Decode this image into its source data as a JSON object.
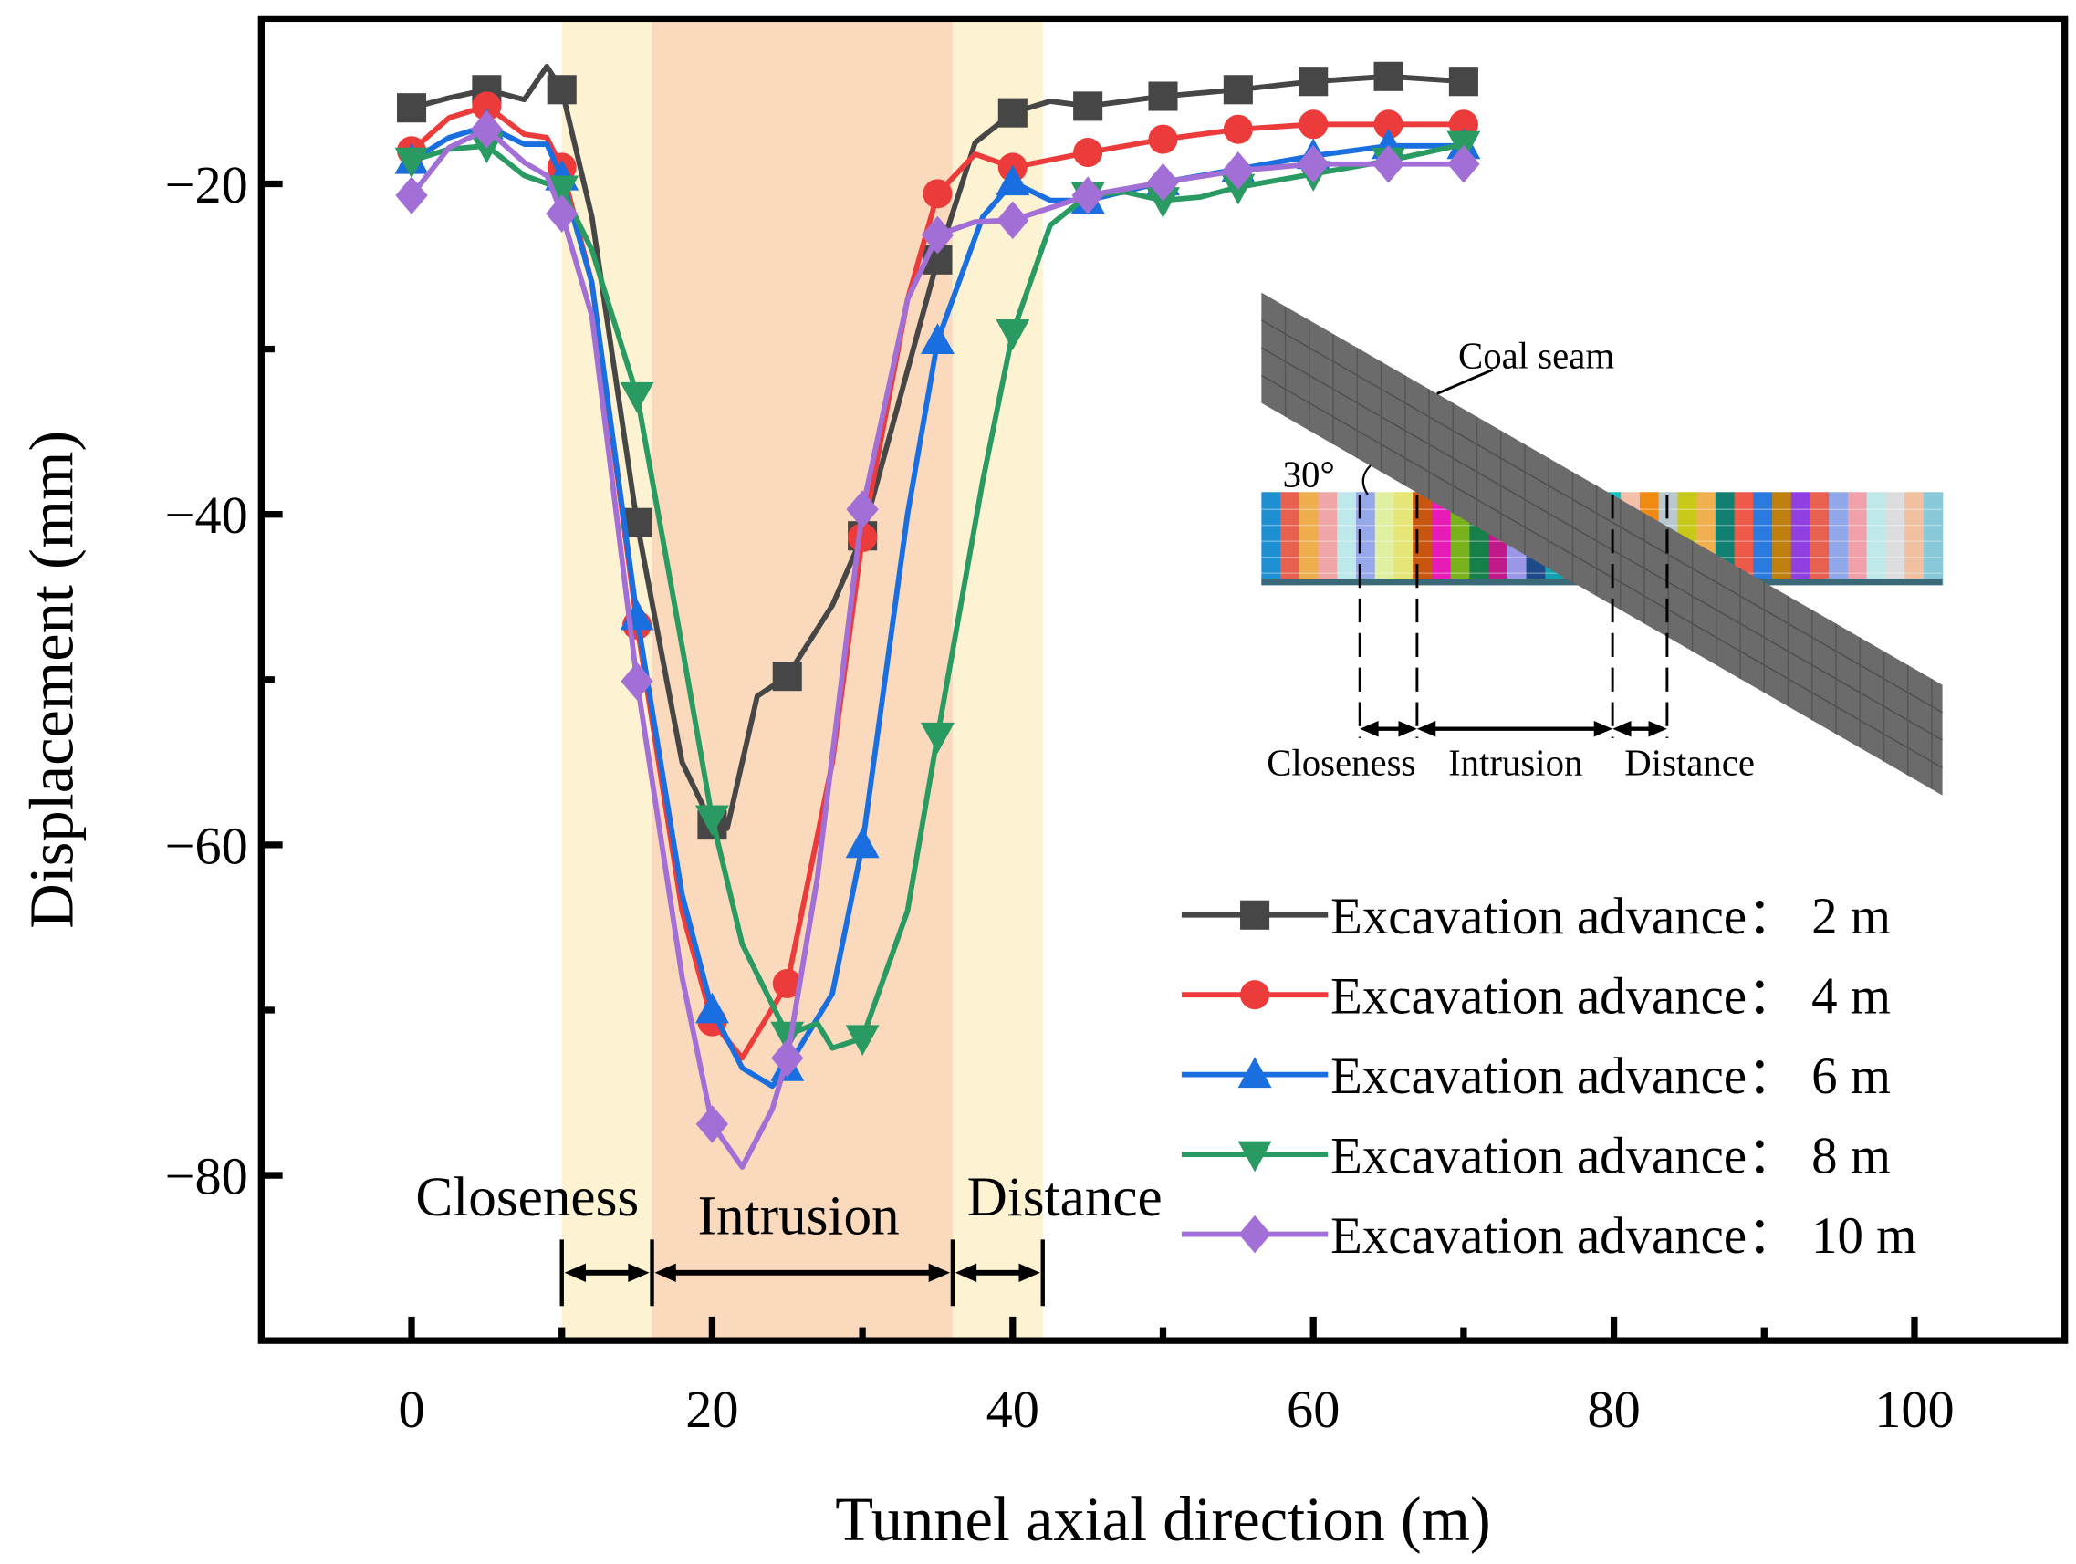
{
  "chart_data": {
    "type": "line",
    "title": "",
    "xlabel": "Tunnel axial direction (m)",
    "ylabel": "Displacement (mm)",
    "xlim": [
      -10,
      110
    ],
    "ylim": [
      -90,
      -10
    ],
    "xticks": [
      0,
      20,
      40,
      60,
      80,
      100
    ],
    "xtick_labels": [
      "0",
      "20",
      "40",
      "60",
      "80",
      "100"
    ],
    "yticks": [
      -20,
      -40,
      -60,
      -80
    ],
    "ytick_labels": [
      "−20",
      "−40",
      "−60",
      "−80"
    ],
    "grid": false,
    "legend_position": "bottom-right",
    "regions": [
      {
        "label": "Closeness",
        "x0": 10,
        "x1": 16,
        "color": "#fdf3d2"
      },
      {
        "label": "Intrusion",
        "x0": 16,
        "x1": 36,
        "color": "#fbd9bd"
      },
      {
        "label": "Distance",
        "x0": 36,
        "x1": 42,
        "color": "#fdf3d2"
      }
    ],
    "series": [
      {
        "name": "Excavation advance：  2 m",
        "color": "#464646",
        "marker": "square",
        "x": [
          0,
          2.5,
          5,
          7.5,
          9,
          10,
          12,
          15,
          18,
          20,
          21,
          23,
          25,
          28,
          30,
          35,
          37.5,
          40,
          42.5,
          45,
          50,
          55,
          60,
          65,
          70
        ],
        "y": [
          -15.4,
          -14.8,
          -14.3,
          -14.9,
          -12.9,
          -14.3,
          -22,
          -40.5,
          -55,
          -58.8,
          -59,
          -51,
          -49.8,
          -45.5,
          -41.3,
          -24.6,
          -17.5,
          -15.7,
          -15.0,
          -15.3,
          -14.7,
          -14.3,
          -13.8,
          -13.5,
          -13.8
        ]
      },
      {
        "name": "Excavation advance：  4 m",
        "color": "#ec3b3b",
        "marker": "circle",
        "x": [
          0,
          2.5,
          5,
          7.5,
          9,
          10,
          12,
          15,
          18,
          20,
          22,
          25,
          28,
          30,
          33,
          35,
          37.5,
          40,
          45,
          50,
          55,
          60,
          65,
          70
        ],
        "y": [
          -18.0,
          -16.0,
          -15.3,
          -17.0,
          -17.2,
          -19.0,
          -26,
          -46.7,
          -64,
          -70.7,
          -72.9,
          -68.4,
          -55,
          -41.4,
          -27,
          -20.6,
          -18.2,
          -19.0,
          -18.1,
          -17.3,
          -16.7,
          -16.4,
          -16.4,
          -16.4
        ]
      },
      {
        "name": "Excavation advance：  6 m",
        "color": "#1a6fe0",
        "marker": "triangle-up",
        "x": [
          0,
          2.5,
          5,
          7.5,
          9,
          10,
          12,
          15,
          18,
          20,
          22,
          24,
          25,
          28,
          30,
          33,
          35,
          38,
          40,
          42.5,
          45,
          50,
          55,
          60,
          65,
          70
        ],
        "y": [
          -18.6,
          -17.2,
          -16.5,
          -17.6,
          -17.6,
          -19.6,
          -26,
          -46.2,
          -63,
          -70.0,
          -73.5,
          -74.6,
          -73.5,
          -69,
          -60,
          -40,
          -29.5,
          -22,
          -19.9,
          -21.0,
          -21.0,
          -19.9,
          -19.1,
          -18.3,
          -17.7,
          -17.7
        ]
      },
      {
        "name": "Excavation advance：  8 m",
        "color": "#2a9a63",
        "marker": "triangle-down",
        "x": [
          0,
          2.5,
          5,
          7.5,
          10,
          12,
          15,
          18,
          20,
          22,
          25,
          27,
          28,
          30,
          33,
          35,
          38,
          40,
          42.5,
          45,
          47.5,
          50,
          52.5,
          55,
          60,
          65,
          70
        ],
        "y": [
          -18.6,
          -17.9,
          -17.7,
          -19.5,
          -20.3,
          -24,
          -32.8,
          -48,
          -58.4,
          -66,
          -71.5,
          -70.8,
          -72.3,
          -71.7,
          -64,
          -53.4,
          -38,
          -29.0,
          -22.5,
          -20.7,
          -20.5,
          -21.0,
          -20.8,
          -20.2,
          -19.4,
          -18.6,
          -17.6
        ]
      },
      {
        "name": "Excavation advance：  10 m",
        "color": "#a26fd6",
        "marker": "diamond",
        "x": [
          0,
          2.5,
          5,
          7.5,
          9,
          10,
          12,
          15,
          18,
          20,
          22,
          24,
          25,
          27,
          30,
          33,
          35,
          37.5,
          40,
          45,
          50,
          55,
          60,
          65,
          70
        ],
        "y": [
          -20.7,
          -17.8,
          -16.7,
          -18.7,
          -19.5,
          -21.8,
          -28,
          -50.1,
          -68,
          -76.9,
          -79.5,
          -76,
          -72.9,
          -62,
          -39.7,
          -27,
          -23.1,
          -22.3,
          -22.2,
          -20.7,
          -19.9,
          -19.2,
          -18.8,
          -18.8,
          -18.8
        ]
      }
    ],
    "inset": {
      "coal_seam_label": "Coal seam",
      "angle_label": "30°",
      "closeness_label": "Closeness",
      "intrusion_label": "Intrusion",
      "distance_label": "Distance"
    }
  }
}
